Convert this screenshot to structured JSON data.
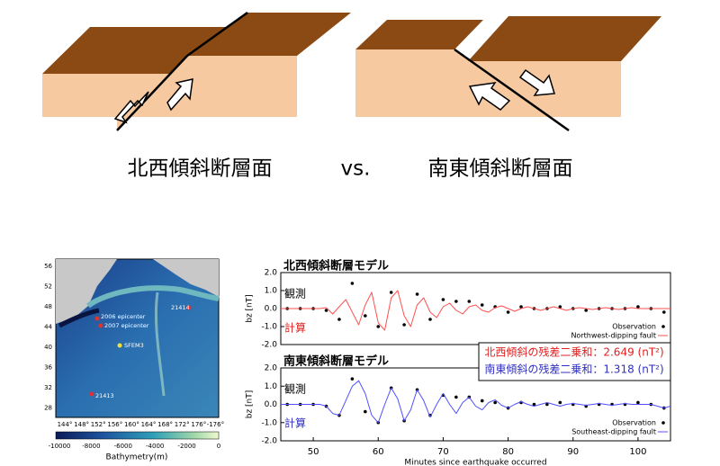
{
  "diagram": {
    "left_label": "北西傾斜断層面",
    "vs": "vs.",
    "right_label": "南東傾斜断層面"
  },
  "map": {
    "lat_labels": [
      "56",
      "52",
      "48",
      "44",
      "40",
      "36",
      "32",
      "28"
    ],
    "lon_labels": [
      "144°",
      "148°",
      "152°",
      "156°",
      "160°",
      "164°",
      "168°",
      "172°",
      "176°",
      "-176°"
    ],
    "places": [
      "2006 epicenter",
      "2007 epicenter",
      "21414",
      "SFEM3",
      "21413"
    ],
    "colorbar_ticks": [
      "-10000",
      "-8000",
      "-6000",
      "-4000",
      "-2000",
      "0"
    ],
    "colorbar_label": "Bathymetry(m)"
  },
  "residuals": [
    {
      "text": "北西傾斜の残差二乗和：2.649 (nT²)",
      "color": "#e02020"
    },
    {
      "text": "南東傾斜の残差二乗和：1.318 (nT²)",
      "color": "#3030c0"
    }
  ],
  "chart_data": [
    {
      "type": "line",
      "title": "北西傾斜断層モデル",
      "y_label": "bz [nT]",
      "xlim": [
        45,
        105
      ],
      "ylim": [
        -2,
        2
      ],
      "yticks": [
        {
          "value": 2,
          "label": "2.0"
        },
        {
          "value": 1,
          "label": "1.0"
        },
        {
          "value": 0,
          "label": "0.0"
        },
        {
          "value": -1,
          "label": "-1.0"
        },
        {
          "value": -2,
          "label": "-2.0"
        }
      ],
      "annotations": [
        {
          "text": "観測",
          "color": "#000000"
        },
        {
          "text": "計算",
          "color": "#e02020"
        }
      ],
      "series": [
        {
          "name": "Observation",
          "color": "#000000",
          "marker": "dot",
          "x": [
            46,
            48,
            50,
            52,
            54,
            56,
            58,
            60,
            62,
            64,
            66,
            68,
            70,
            72,
            74,
            76,
            78,
            80,
            82,
            84,
            86,
            88,
            90,
            92,
            94,
            96,
            98,
            100,
            102,
            104
          ],
          "values": [
            0,
            0,
            0,
            -0.1,
            -0.6,
            1.4,
            -0.4,
            -1.0,
            0.9,
            -0.9,
            0.8,
            -0.6,
            0.5,
            0.4,
            0.4,
            0.2,
            0.1,
            -0.2,
            0.1,
            0,
            0,
            0.1,
            0,
            -0.1,
            0,
            0,
            0,
            0.1,
            0,
            -0.2
          ]
        },
        {
          "name": "Northwest-dipping fault",
          "color": "#ff5050",
          "marker": "line",
          "x": [
            45,
            46,
            47,
            48,
            49,
            50,
            51,
            52,
            53,
            54,
            55,
            56,
            57,
            58,
            59,
            60,
            61,
            62,
            63,
            64,
            65,
            66,
            67,
            68,
            69,
            70,
            71,
            72,
            73,
            74,
            75,
            76,
            77,
            78,
            79,
            80,
            81,
            82,
            83,
            84,
            85,
            86,
            87,
            88,
            89,
            90,
            91,
            92,
            93,
            94,
            95,
            96,
            97,
            98,
            99,
            100,
            101,
            102,
            103,
            104,
            105
          ],
          "values": [
            0,
            0,
            0,
            0,
            0,
            0,
            0,
            0.05,
            -0.3,
            0.1,
            0.5,
            -0.2,
            -0.9,
            0.2,
            0.9,
            -0.8,
            -1.2,
            0.6,
            1.0,
            -0.4,
            -1.0,
            0.2,
            0.6,
            -0.2,
            -0.5,
            0.1,
            0.3,
            -0.1,
            -0.3,
            0.1,
            0.2,
            -0.1,
            -0.2,
            0.05,
            0.15,
            0,
            -0.15,
            0,
            0.1,
            0,
            -0.1,
            0,
            0.1,
            0,
            -0.1,
            0,
            0.05,
            0,
            -0.05,
            0,
            0.05,
            0,
            -0.05,
            0,
            0.05,
            0,
            0,
            0,
            0,
            0,
            0
          ]
        }
      ]
    },
    {
      "type": "line",
      "title": "南東傾斜断層モデル",
      "y_label": "bz [nT]",
      "x_label": "Minutes since earthquake occurred",
      "xlim": [
        45,
        105
      ],
      "xticks": [
        50,
        60,
        70,
        80,
        90,
        100
      ],
      "ylim": [
        -2,
        2
      ],
      "yticks": [
        {
          "value": 2,
          "label": "2.0"
        },
        {
          "value": 1,
          "label": "1.0"
        },
        {
          "value": 0,
          "label": "0.0"
        },
        {
          "value": -1,
          "label": "-1.0"
        },
        {
          "value": -2,
          "label": "-2.0"
        }
      ],
      "annotations": [
        {
          "text": "観測",
          "color": "#000000"
        },
        {
          "text": "計算",
          "color": "#3030c0"
        }
      ],
      "series": [
        {
          "name": "Observation",
          "color": "#000000",
          "marker": "dot",
          "x": [
            46,
            48,
            50,
            52,
            54,
            56,
            58,
            60,
            62,
            64,
            66,
            68,
            70,
            72,
            74,
            76,
            78,
            80,
            82,
            84,
            86,
            88,
            90,
            92,
            94,
            96,
            98,
            100,
            102,
            104
          ],
          "values": [
            0,
            0,
            0,
            -0.1,
            -0.6,
            1.4,
            -0.4,
            -1.0,
            0.9,
            -0.9,
            0.8,
            -0.6,
            0.5,
            0.4,
            0.4,
            0.2,
            0.1,
            -0.2,
            0.1,
            0,
            0,
            0.1,
            0,
            -0.1,
            0,
            0,
            0,
            0.1,
            0,
            -0.2
          ]
        },
        {
          "name": "Southeast-dipping fault",
          "color": "#5050ff",
          "marker": "line",
          "x": [
            45,
            46,
            47,
            48,
            49,
            50,
            51,
            52,
            53,
            54,
            55,
            56,
            57,
            58,
            59,
            60,
            61,
            62,
            63,
            64,
            65,
            66,
            67,
            68,
            69,
            70,
            71,
            72,
            73,
            74,
            75,
            76,
            77,
            78,
            79,
            80,
            81,
            82,
            83,
            84,
            85,
            86,
            87,
            88,
            89,
            90,
            91,
            92,
            93,
            94,
            95,
            96,
            97,
            98,
            99,
            100,
            101,
            102,
            103,
            104,
            105
          ],
          "values": [
            0,
            0,
            0,
            0,
            0,
            0,
            0,
            -0.1,
            -0.5,
            -0.6,
            0.2,
            1.0,
            1.3,
            0.6,
            -0.6,
            -1.0,
            0,
            0.9,
            0.3,
            -0.9,
            -0.3,
            0.8,
            0.2,
            -0.7,
            0,
            0.6,
            0,
            -0.5,
            0.1,
            0.4,
            -0.1,
            -0.3,
            0.1,
            0.25,
            -0.05,
            -0.2,
            0,
            0.15,
            0,
            -0.1,
            0,
            0.1,
            0,
            -0.1,
            0,
            0.05,
            0,
            -0.05,
            0,
            0.05,
            0,
            -0.05,
            0,
            0.05,
            0,
            0,
            0,
            0,
            -0.1,
            -0.2,
            -0.1
          ]
        }
      ]
    }
  ]
}
